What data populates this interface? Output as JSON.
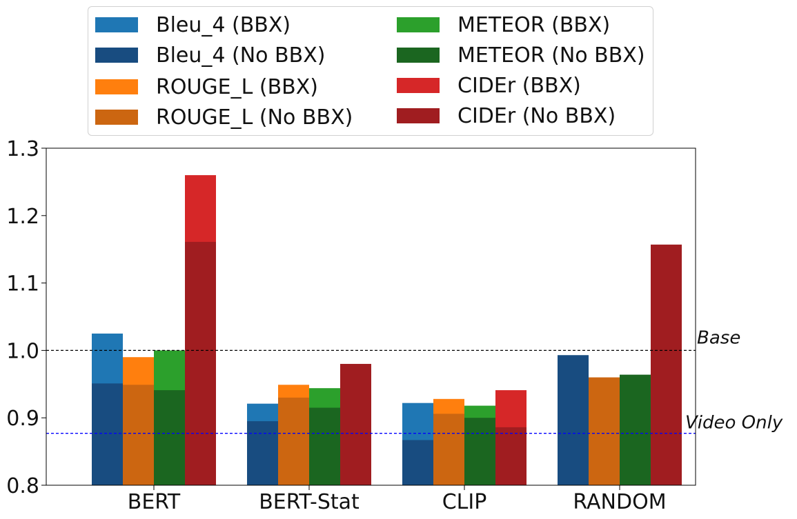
{
  "legend": {
    "items": [
      {
        "label": "Bleu_4 (BBX)",
        "color": "#1f77b4"
      },
      {
        "label": "Bleu_4 (No BBX)",
        "color": "#184c80"
      },
      {
        "label": "ROUGE_L (BBX)",
        "color": "#ff7f0e"
      },
      {
        "label": "ROUGE_L (No BBX)",
        "color": "#cc6611"
      },
      {
        "label": "METEOR (BBX)",
        "color": "#2ca02c"
      },
      {
        "label": "METEOR (No BBX)",
        "color": "#1b6620"
      },
      {
        "label": "CIDEr (BBX)",
        "color": "#d62728"
      },
      {
        "label": "CIDEr (No BBX)",
        "color": "#a01d20"
      }
    ]
  },
  "chart_data": {
    "type": "bar",
    "categories": [
      "BERT",
      "BERT-Stat",
      "CLIP",
      "RANDOM"
    ],
    "ylim": [
      0.8,
      1.3
    ],
    "yticks": [
      "0.8",
      "0.9",
      "1.0",
      "1.1",
      "1.2",
      "1.3"
    ],
    "title": "",
    "xlabel": "",
    "ylabel": "",
    "grid": false,
    "legend_position": "top",
    "series": [
      {
        "name": "Bleu_4 (BBX)",
        "color": "#1f77b4",
        "values": [
          1.025,
          0.921,
          0.922,
          null
        ]
      },
      {
        "name": "Bleu_4 (No BBX)",
        "color": "#184c80",
        "values": [
          0.951,
          0.895,
          0.867,
          0.993
        ]
      },
      {
        "name": "ROUGE_L (BBX)",
        "color": "#ff7f0e",
        "values": [
          0.99,
          0.949,
          0.928,
          null
        ]
      },
      {
        "name": "ROUGE_L (No BBX)",
        "color": "#cc6611",
        "values": [
          0.949,
          0.93,
          0.906,
          0.96
        ]
      },
      {
        "name": "METEOR (BBX)",
        "color": "#2ca02c",
        "values": [
          1.0,
          0.944,
          0.918,
          null
        ]
      },
      {
        "name": "METEOR (No BBX)",
        "color": "#1b6620",
        "values": [
          0.941,
          0.915,
          0.9,
          0.964
        ]
      },
      {
        "name": "CIDEr (BBX)",
        "color": "#d62728",
        "values": [
          1.26,
          null,
          0.941,
          null
        ]
      },
      {
        "name": "CIDEr (No BBX)",
        "color": "#a01d20",
        "values": [
          1.161,
          0.98,
          0.886,
          1.157
        ]
      }
    ],
    "reference_lines": [
      {
        "label": "Base",
        "value": 1.0,
        "color": "#000000"
      },
      {
        "label": "Video Only",
        "value": 0.877,
        "color": "#0000ff"
      }
    ]
  }
}
